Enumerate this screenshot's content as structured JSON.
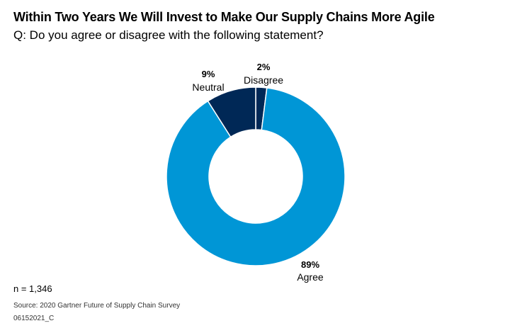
{
  "header": {
    "title": "Within Two Years We Will Invest to Make Our Supply Chains More Agile",
    "subtitle": "Q: Do you agree or disagree with the following statement?"
  },
  "footer": {
    "n": "n = 1,346",
    "source": "Source: 2020 Gartner Future of Supply Chain Survey",
    "code": "06152021_C"
  },
  "colors": {
    "agree": "#0096d6",
    "neutral": "#002856",
    "disagree": "#002856"
  },
  "chart_data": {
    "type": "pie",
    "title": "Within Two Years We Will Invest to Make Our Supply Chains More Agile",
    "subtitle": "Q: Do you agree or disagree with the following statement?",
    "slices": [
      {
        "label": "Disagree",
        "value": 2,
        "value_label": "2%",
        "color": "#002856"
      },
      {
        "label": "Agree",
        "value": 89,
        "value_label": "89%",
        "color": "#0096d6"
      },
      {
        "label": "Neutral",
        "value": 9,
        "value_label": "9%",
        "color": "#002856"
      }
    ],
    "donut": true,
    "start_angle": "top",
    "direction": "clockwise"
  }
}
